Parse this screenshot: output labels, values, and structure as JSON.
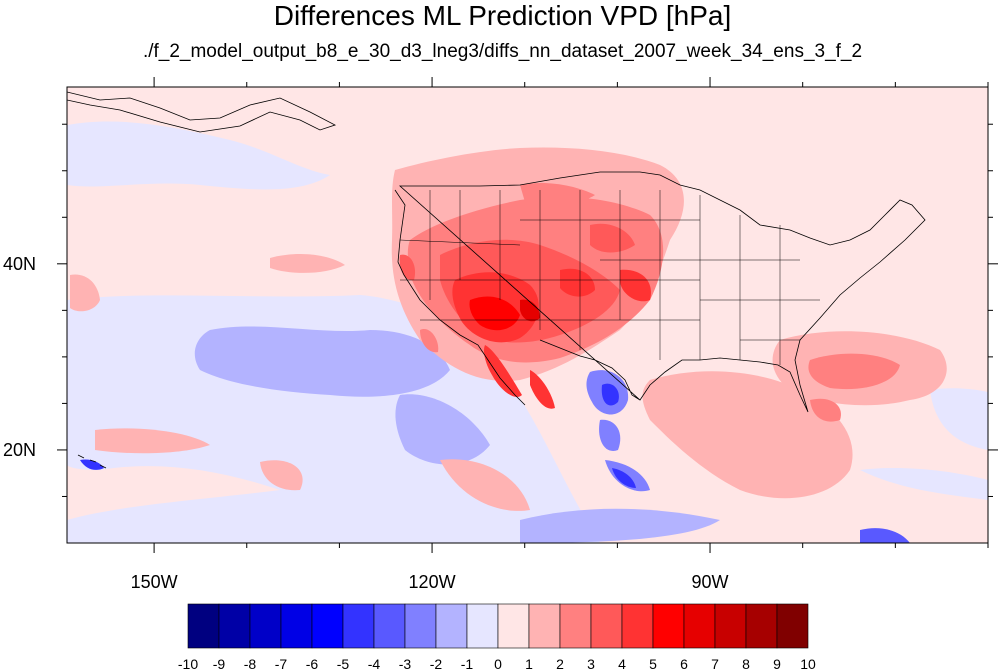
{
  "header": {
    "title": "Differences ML Prediction VPD [hPa]",
    "subtitle": "./f_2_model_output_b8_e_30_d3_lneg3/diffs_nn_dataset_2007_week_34_ens_3_f_2"
  },
  "axes": {
    "lon_labels": [
      {
        "lon": -150,
        "label": "150W"
      },
      {
        "lon": -120,
        "label": "120W"
      },
      {
        "lon": -90,
        "label": "90W"
      }
    ],
    "lat_labels": [
      {
        "lat": 40,
        "label": "40N"
      },
      {
        "lat": 20,
        "label": "20N"
      }
    ],
    "lon_range": [
      -159.4,
      -60
    ],
    "lat_range": [
      10,
      59
    ]
  },
  "colorbar": {
    "colors": [
      "#000080",
      "#0000a6",
      "#0000c8",
      "#0000e6",
      "#0000ff",
      "#3333ff",
      "#5959ff",
      "#8080ff",
      "#b3b3ff",
      "#e6e6ff",
      "#ffe6e6",
      "#ffb3b3",
      "#ff8080",
      "#ff5959",
      "#ff3333",
      "#ff0000",
      "#e60000",
      "#c80000",
      "#a60000",
      "#800000"
    ],
    "labels": [
      "-10",
      "-9",
      "-8",
      "-7",
      "-6",
      "-5",
      "-4",
      "-3",
      "-2",
      "-1",
      "0",
      "1",
      "2",
      "3",
      "4",
      "5",
      "6",
      "7",
      "8",
      "9",
      "10"
    ]
  }
}
